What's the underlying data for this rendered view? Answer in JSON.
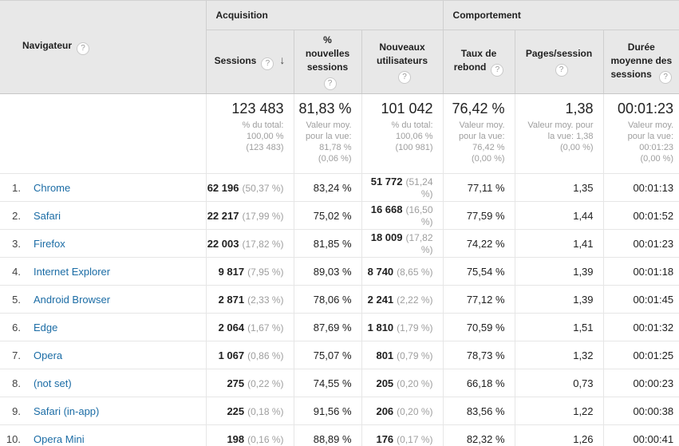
{
  "colors": {
    "link_blue": "#1b6ca5",
    "header_bg": "#e8e8e8"
  },
  "header": {
    "dimension": {
      "label": "Navigateur"
    },
    "groups": {
      "acquisition": "Acquisition",
      "comportement": "Comportement"
    },
    "columns": {
      "sessions": "Sessions",
      "new_sessions": "% nouvelles sessions",
      "new_users": "Nouveaux utilisateurs",
      "bounce": "Taux de rebond",
      "pages": "Pages/session",
      "duration": "Durée moyenne des sessions"
    },
    "sort_icon": "↓",
    "help_icon": "?"
  },
  "summary": {
    "sessions": {
      "value": "123 483",
      "sub": "% du total:\n100,00 %\n(123 483)"
    },
    "new_sessions": {
      "value": "81,83 %",
      "sub": "Valeur moy.\npour la vue:\n81,78 %\n(0,06 %)"
    },
    "new_users": {
      "value": "101 042",
      "sub": "% du total:\n100,06 %\n(100 981)"
    },
    "bounce": {
      "value": "76,42 %",
      "sub": "Valeur moy.\npour la vue:\n76,42 %\n(0,00 %)"
    },
    "pages": {
      "value": "1,38",
      "sub": "Valeur moy. pour\nla vue: 1,38\n(0,00 %)"
    },
    "duration": {
      "value": "00:01:23",
      "sub": "Valeur moy.\npour la vue:\n00:01:23\n(0,00 %)"
    }
  },
  "rows": [
    {
      "index": "1.",
      "name": "Chrome",
      "sessions": "62 196",
      "sessions_pct": "(50,37 %)",
      "new_sessions": "83,24 %",
      "new_users": "51 772",
      "new_users_pct": "(51,24 %)",
      "bounce": "77,11 %",
      "pages": "1,35",
      "duration": "00:01:13"
    },
    {
      "index": "2.",
      "name": "Safari",
      "sessions": "22 217",
      "sessions_pct": "(17,99 %)",
      "new_sessions": "75,02 %",
      "new_users": "16 668",
      "new_users_pct": "(16,50 %)",
      "bounce": "77,59 %",
      "pages": "1,44",
      "duration": "00:01:52"
    },
    {
      "index": "3.",
      "name": "Firefox",
      "sessions": "22 003",
      "sessions_pct": "(17,82 %)",
      "new_sessions": "81,85 %",
      "new_users": "18 009",
      "new_users_pct": "(17,82 %)",
      "bounce": "74,22 %",
      "pages": "1,41",
      "duration": "00:01:23"
    },
    {
      "index": "4.",
      "name": "Internet Explorer",
      "sessions": "9 817",
      "sessions_pct": "(7,95 %)",
      "new_sessions": "89,03 %",
      "new_users": "8 740",
      "new_users_pct": "(8,65 %)",
      "bounce": "75,54 %",
      "pages": "1,39",
      "duration": "00:01:18"
    },
    {
      "index": "5.",
      "name": "Android Browser",
      "sessions": "2 871",
      "sessions_pct": "(2,33 %)",
      "new_sessions": "78,06 %",
      "new_users": "2 241",
      "new_users_pct": "(2,22 %)",
      "bounce": "77,12 %",
      "pages": "1,39",
      "duration": "00:01:45"
    },
    {
      "index": "6.",
      "name": "Edge",
      "sessions": "2 064",
      "sessions_pct": "(1,67 %)",
      "new_sessions": "87,69 %",
      "new_users": "1 810",
      "new_users_pct": "(1,79 %)",
      "bounce": "70,59 %",
      "pages": "1,51",
      "duration": "00:01:32"
    },
    {
      "index": "7.",
      "name": "Opera",
      "sessions": "1 067",
      "sessions_pct": "(0,86 %)",
      "new_sessions": "75,07 %",
      "new_users": "801",
      "new_users_pct": "(0,79 %)",
      "bounce": "78,73 %",
      "pages": "1,32",
      "duration": "00:01:25"
    },
    {
      "index": "8.",
      "name": "(not set)",
      "sessions": "275",
      "sessions_pct": "(0,22 %)",
      "new_sessions": "74,55 %",
      "new_users": "205",
      "new_users_pct": "(0,20 %)",
      "bounce": "66,18 %",
      "pages": "0,73",
      "duration": "00:00:23"
    },
    {
      "index": "9.",
      "name": "Safari (in-app)",
      "sessions": "225",
      "sessions_pct": "(0,18 %)",
      "new_sessions": "91,56 %",
      "new_users": "206",
      "new_users_pct": "(0,20 %)",
      "bounce": "83,56 %",
      "pages": "1,22",
      "duration": "00:00:38"
    },
    {
      "index": "10.",
      "name": "Opera Mini",
      "sessions": "198",
      "sessions_pct": "(0,16 %)",
      "new_sessions": "88,89 %",
      "new_users": "176",
      "new_users_pct": "(0,17 %)",
      "bounce": "82,32 %",
      "pages": "1,26",
      "duration": "00:00:41"
    }
  ]
}
